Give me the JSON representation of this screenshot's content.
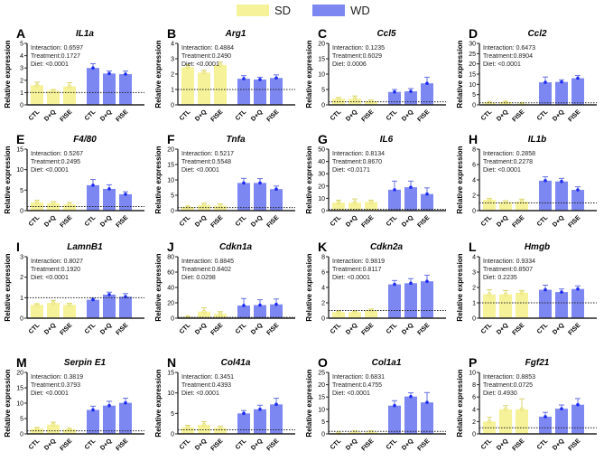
{
  "legend": {
    "sd": "SD",
    "wd": "WD"
  },
  "colors": {
    "sd": "#f6f29a",
    "sd_point": "#e9e47a",
    "wd": "#7d87f2",
    "wd_point": "#1c2af0"
  },
  "chart_data": {
    "type": "bar",
    "categories": [
      "CTL",
      "D+Q",
      "FISE",
      "CTL",
      "D+Q",
      "FISE"
    ],
    "groups": [
      "SD",
      "SD",
      "SD",
      "WD",
      "WD",
      "WD"
    ],
    "ylabel": "Relative expression",
    "reference_line": 1,
    "panels": [
      {
        "letter": "A",
        "title": "IL1a",
        "ylim": [
          0,
          5
        ],
        "step": 1,
        "stats": [
          "Interaction: 0.6597",
          "Treatment:0.1727",
          "Diet: <0.0001"
        ],
        "values": [
          1.6,
          1.15,
          1.5,
          3.0,
          2.55,
          2.5
        ],
        "sem": [
          0.25,
          0.1,
          0.3,
          0.35,
          0.2,
          0.25
        ]
      },
      {
        "letter": "B",
        "title": "Arg1",
        "ylim": [
          0,
          4
        ],
        "step": 1,
        "stats": [
          "Interaction: 0.4884",
          "Treatment:0.2490",
          "Diet: <0.0001"
        ],
        "values": [
          2.45,
          2.1,
          2.6,
          1.7,
          1.65,
          1.75
        ],
        "sem": [
          0.15,
          0.15,
          0.2,
          0.2,
          0.15,
          0.2
        ]
      },
      {
        "letter": "C",
        "title": "Ccl5",
        "ylim": [
          0,
          20
        ],
        "step": 5,
        "stats": [
          "Interaction: 0.1235",
          "Treatment:0.6029",
          "Diet: 0.0006"
        ],
        "values": [
          2,
          2,
          1.2,
          4.2,
          4.4,
          7
        ],
        "sem": [
          0.4,
          0.9,
          0.4,
          0.8,
          0.9,
          2
        ]
      },
      {
        "letter": "D",
        "title": "Ccl2",
        "ylim": [
          0,
          30
        ],
        "step": 5,
        "stats": [
          "Interaction: 0.6473",
          "Treatment:0.8904",
          "Diet: <0.0001"
        ],
        "values": [
          1,
          1.3,
          0.5,
          11,
          11.2,
          13
        ],
        "sem": [
          0.3,
          0.3,
          0.2,
          2.6,
          1,
          1.3
        ]
      },
      {
        "letter": "E",
        "title": "F4/80",
        "ylim": [
          0,
          15
        ],
        "step": 5,
        "stats": [
          "Interaction: 0.5267",
          "Treatment:0.2495",
          "Diet: <0.0001"
        ],
        "values": [
          2,
          1.8,
          1.5,
          6.2,
          5.3,
          4
        ],
        "sem": [
          0.5,
          0.4,
          0.5,
          1.4,
          1,
          0.6
        ]
      },
      {
        "letter": "F",
        "title": "Tnfa",
        "ylim": [
          0,
          20
        ],
        "step": 5,
        "stats": [
          "Interaction: 0.5217",
          "Treatment:0.5548",
          "Diet: <0.0001"
        ],
        "values": [
          1.2,
          1.8,
          1.6,
          9,
          9,
          7
        ],
        "sem": [
          0.2,
          0.6,
          0.6,
          1.5,
          1.4,
          1
        ]
      },
      {
        "letter": "G",
        "title": "IL6",
        "ylim": [
          0,
          50
        ],
        "step": 10,
        "stats": [
          "Interaction: 0.8134",
          "Treatment:0.8670",
          "Diet: <0.0171"
        ],
        "values": [
          6.5,
          6.5,
          7,
          17,
          19,
          13.5
        ],
        "sem": [
          2,
          3,
          1.5,
          7,
          5,
          5
        ]
      },
      {
        "letter": "H",
        "title": "IL1b",
        "ylim": [
          0,
          8
        ],
        "step": 2,
        "stats": [
          "Interaction: 0.2858",
          "Treatment:0.2278",
          "Diet: <0.0001"
        ],
        "values": [
          1.4,
          1.1,
          1.2,
          3.9,
          3.8,
          2.7
        ],
        "sem": [
          0.2,
          0.2,
          0.3,
          0.5,
          0.4,
          0.4
        ]
      },
      {
        "letter": "I",
        "title": "LamnB1",
        "ylim": [
          0,
          3
        ],
        "step": 1,
        "stats": [
          "Interaction: 0.8027",
          "Treatment:0.1920",
          "Diet: <0.0001"
        ],
        "values": [
          0.65,
          0.75,
          0.65,
          0.9,
          1.15,
          1.05
        ],
        "sem": [
          0.05,
          0.12,
          0.08,
          0.08,
          0.12,
          0.15
        ]
      },
      {
        "letter": "J",
        "title": "Cdkn1a",
        "ylim": [
          0,
          80
        ],
        "step": 20,
        "stats": [
          "Interaction: 0.8845",
          "Treatment:0.8402",
          "Diet: 0.0298"
        ],
        "values": [
          1.5,
          8.5,
          5.5,
          16.5,
          17,
          18
        ],
        "sem": [
          0.7,
          5,
          3,
          9,
          7,
          7
        ]
      },
      {
        "letter": "K",
        "title": "Cdkn2a",
        "ylim": [
          0,
          8
        ],
        "step": 2,
        "stats": [
          "Interaction: 0.9819",
          "Treatment:0.8117",
          "Diet: <0.0001"
        ],
        "values": [
          0.8,
          0.8,
          1.0,
          4.4,
          4.55,
          4.8
        ],
        "sem": [
          0.1,
          0.1,
          0.2,
          0.5,
          0.6,
          0.8
        ]
      },
      {
        "letter": "L",
        "title": "Hmgb",
        "ylim": [
          0,
          4
        ],
        "step": 1,
        "stats": [
          "Interaction: 0.9334",
          "Treatment:0.8507",
          "Diet: 0.2235"
        ],
        "values": [
          1.55,
          1.55,
          1.65,
          1.85,
          1.7,
          1.9
        ],
        "sem": [
          0.3,
          0.25,
          0.15,
          0.3,
          0.2,
          0.2
        ]
      },
      {
        "letter": "M",
        "title": "Serpin E1",
        "ylim": [
          0,
          20
        ],
        "step": 5,
        "stats": [
          "Interaction: 0.3819",
          "Treatment:0.3793",
          "Diet: <0.0001"
        ],
        "values": [
          1.7,
          3,
          1.5,
          7.8,
          9.2,
          10.1
        ],
        "sem": [
          0.4,
          0.8,
          0.2,
          1.2,
          1.4,
          1.5
        ]
      },
      {
        "letter": "N",
        "title": "Col41a",
        "ylim": [
          0,
          15
        ],
        "step": 5,
        "stats": [
          "Interaction: 0.3451",
          "Treatment:0.4393",
          "Diet: <0.0001"
        ],
        "values": [
          1.6,
          2.2,
          1.5,
          5,
          6,
          7.2
        ],
        "sem": [
          0.5,
          0.8,
          0.4,
          0.7,
          1,
          1.5
        ]
      },
      {
        "letter": "O",
        "title": "Col1a1",
        "ylim": [
          0,
          25
        ],
        "step": 5,
        "stats": [
          "Interaction: 0.6831",
          "Treatment:0.4755",
          "Diet: <0.0001"
        ],
        "values": [
          0.3,
          0.7,
          0.7,
          11.5,
          15.2,
          12.8
        ],
        "sem": [
          0.1,
          0.6,
          0.6,
          2,
          1.5,
          4
        ]
      },
      {
        "letter": "P",
        "title": "Fgf21",
        "ylim": [
          0,
          10
        ],
        "step": 2,
        "stats": [
          "Interaction: 0.8853",
          "Treatment:0.0725",
          "Diet: 0.4930"
        ],
        "values": [
          2,
          4,
          4,
          2.8,
          4.1,
          4.75
        ],
        "sem": [
          0.7,
          0.6,
          1.7,
          0.7,
          0.6,
          1
        ]
      }
    ]
  }
}
